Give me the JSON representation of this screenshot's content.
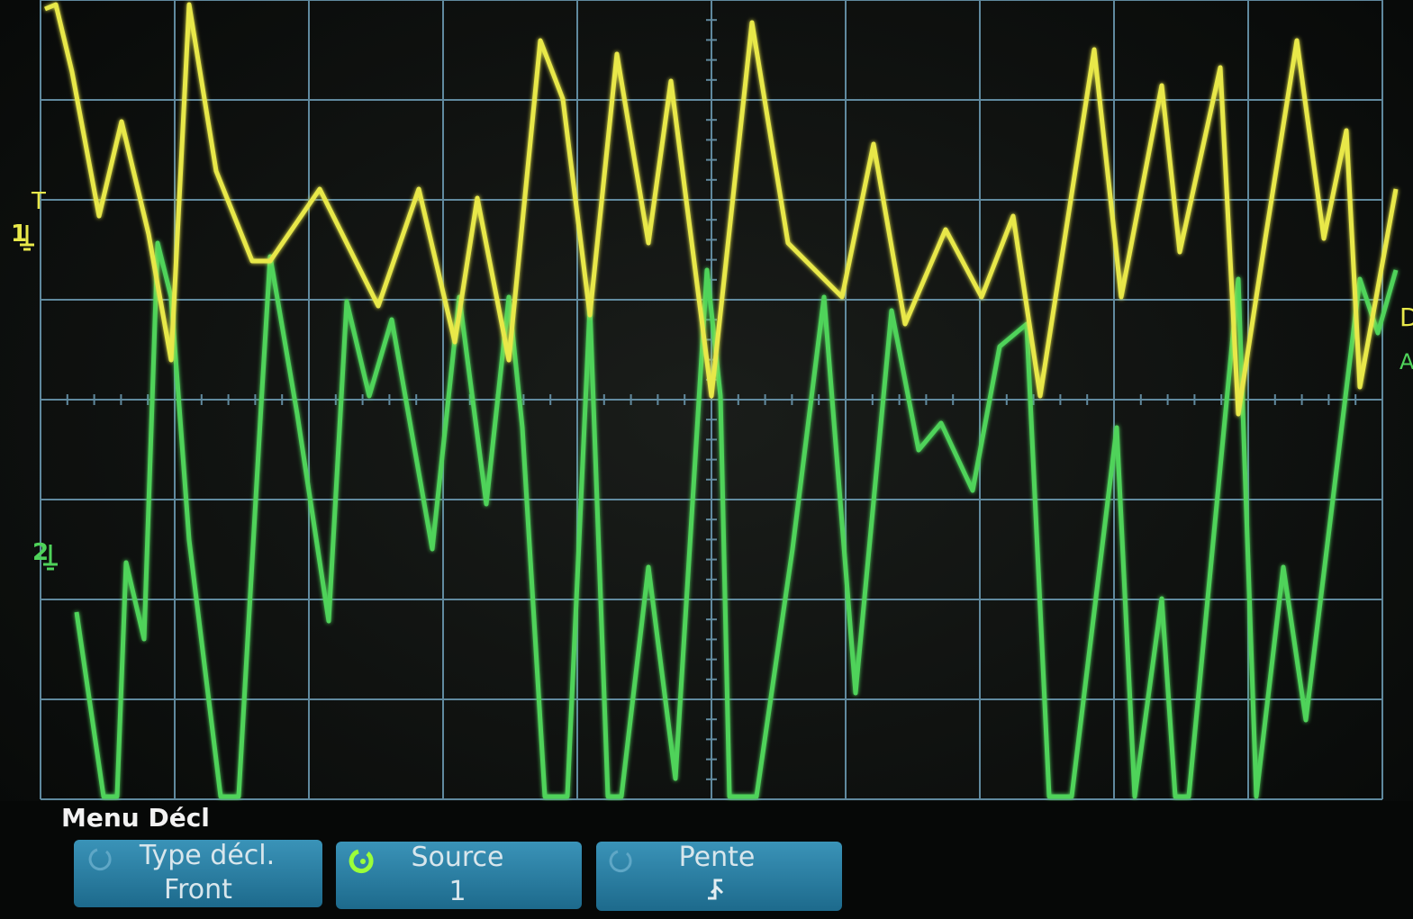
{
  "screen": {
    "markers": {
      "trigger": "T",
      "channel_1": "1",
      "channel_2": "2",
      "right_1": "D",
      "right_2": "A"
    },
    "menu_title": "Menu Décl",
    "softkeys": [
      {
        "label": "Type décl.",
        "value": "Front"
      },
      {
        "label": "Source",
        "value": "1"
      },
      {
        "label": "Pente"
      }
    ]
  }
}
